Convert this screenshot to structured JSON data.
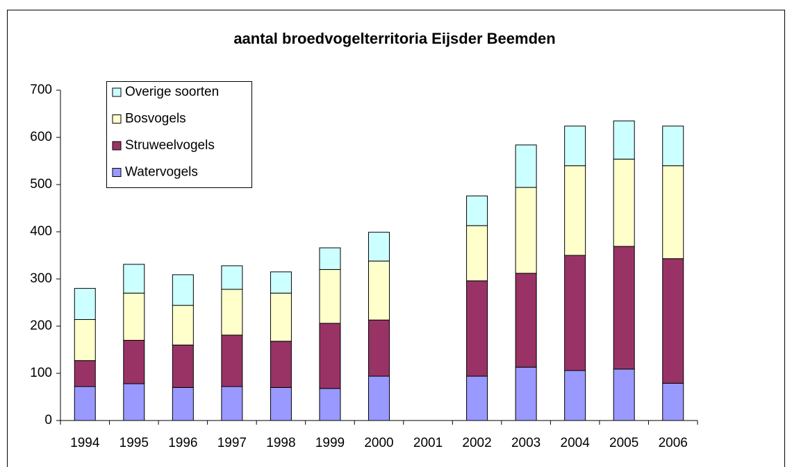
{
  "chart_data": {
    "type": "stacked_bar",
    "title": "aantal broedvogelterritoria Eijsder Beemden",
    "categories": [
      "1994",
      "1995",
      "1996",
      "1997",
      "1998",
      "1999",
      "2000",
      "2001",
      "2002",
      "2003",
      "2004",
      "2005",
      "2006"
    ],
    "series": [
      {
        "name": "Watervogels",
        "color": "#9999ff",
        "values": [
          72,
          78,
          70,
          72,
          70,
          68,
          94,
          null,
          94,
          113,
          106,
          109,
          79
        ]
      },
      {
        "name": "Struweelvogels",
        "color": "#993366",
        "values": [
          55,
          92,
          90,
          109,
          98,
          138,
          119,
          null,
          202,
          199,
          244,
          260,
          264
        ]
      },
      {
        "name": "Bosvogels",
        "color": "#ffffcc",
        "values": [
          87,
          100,
          84,
          97,
          102,
          114,
          125,
          null,
          117,
          182,
          190,
          185,
          197
        ]
      },
      {
        "name": "Overige soorten",
        "color": "#ccffff",
        "values": [
          66,
          61,
          65,
          50,
          45,
          46,
          61,
          null,
          63,
          90,
          84,
          81,
          84
        ]
      }
    ],
    "ylim": [
      0,
      700
    ],
    "yticks": [
      0,
      100,
      200,
      300,
      400,
      500,
      600,
      700
    ],
    "legend": "upper-left"
  }
}
